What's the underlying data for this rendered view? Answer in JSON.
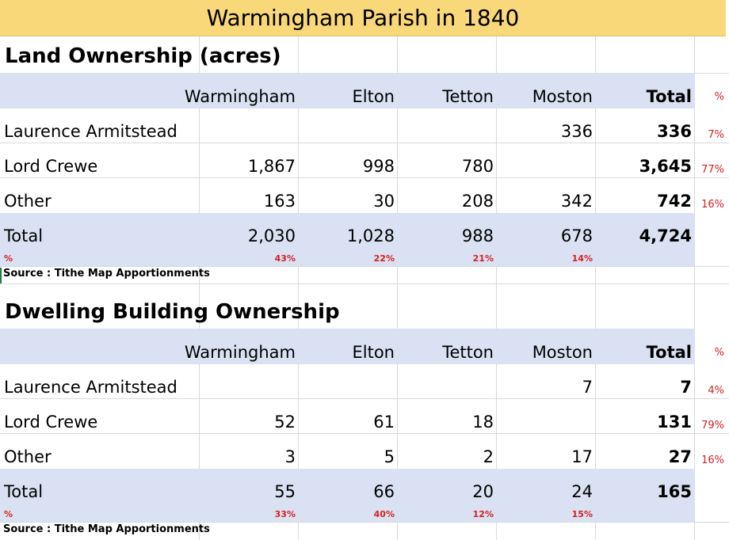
{
  "title": "Warmingham Parish in 1840",
  "land": {
    "heading": "Land Ownership (acres)",
    "columns": [
      "Warmingham",
      "Elton",
      "Tetton",
      "Moston",
      "Total",
      "%"
    ],
    "rows": [
      {
        "label": "Laurence Armitstead",
        "values": [
          "",
          "",
          "",
          "336"
        ],
        "total": "336",
        "pct": "7%"
      },
      {
        "label": "Lord Crewe",
        "values": [
          "1,867",
          "998",
          "780",
          ""
        ],
        "total": "3,645",
        "pct": "77%"
      },
      {
        "label": "Other",
        "values": [
          "163",
          "30",
          "208",
          "342"
        ],
        "total": "742",
        "pct": "16%"
      }
    ],
    "total_row": {
      "label": "Total",
      "values": [
        "2,030",
        "1,028",
        "988",
        "678"
      ],
      "total": "4,724"
    },
    "pct_row": {
      "label": "%",
      "values": [
        "43%",
        "22%",
        "21%",
        "14%"
      ]
    },
    "source": "Source : Tithe Map Apportionments"
  },
  "dwelling": {
    "heading": "Dwelling Building Ownership",
    "columns": [
      "Warmingham",
      "Elton",
      "Tetton",
      "Moston",
      "Total",
      "%"
    ],
    "rows": [
      {
        "label": "Laurence Armitstead",
        "values": [
          "",
          "",
          "",
          "7"
        ],
        "total": "7",
        "pct": "4%"
      },
      {
        "label": "Lord Crewe",
        "values": [
          "52",
          "61",
          "18",
          ""
        ],
        "total": "131",
        "pct": "79%"
      },
      {
        "label": "Other",
        "values": [
          "3",
          "5",
          "2",
          "17"
        ],
        "total": "27",
        "pct": "16%"
      }
    ],
    "total_row": {
      "label": "Total",
      "values": [
        "55",
        "66",
        "20",
        "24"
      ],
      "total": "165"
    },
    "pct_row": {
      "label": "%",
      "values": [
        "33%",
        "40%",
        "12%",
        "15%"
      ]
    },
    "source": "Source : Tithe Map Apportionments"
  }
}
